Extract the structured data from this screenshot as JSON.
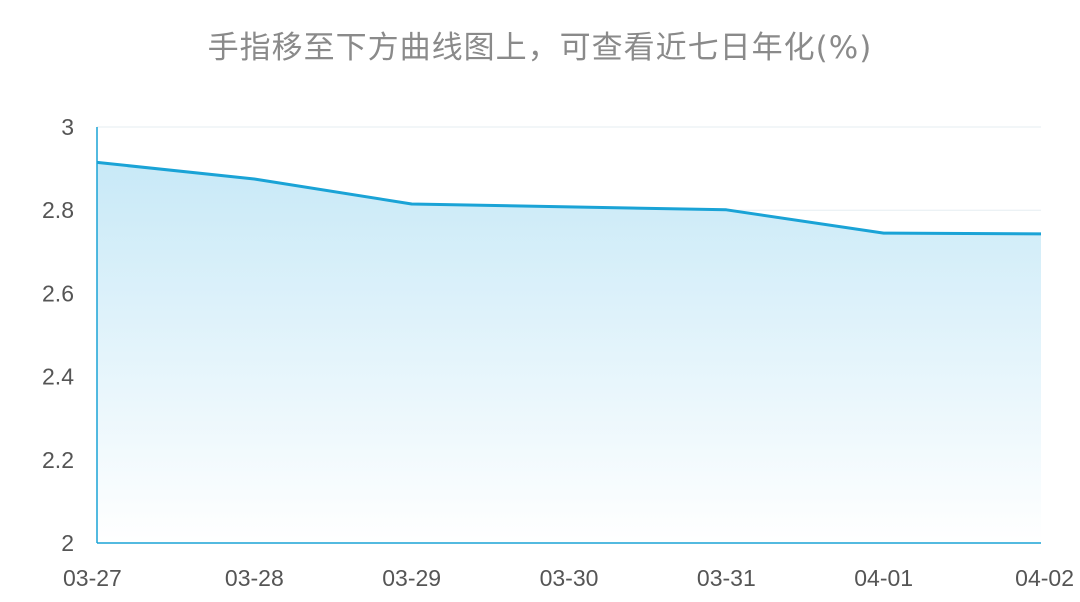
{
  "chart_data": {
    "type": "area",
    "title": "手指移至下方曲线图上，可查看近七日年化(%)",
    "categories": [
      "03-27",
      "03-28",
      "03-29",
      "03-30",
      "03-31",
      "04-01",
      "04-02"
    ],
    "series": [
      {
        "values": [
          2.915,
          2.875,
          2.815,
          2.808,
          2.801,
          2.745,
          2.743
        ]
      }
    ],
    "ylim": [
      2,
      3
    ],
    "yticks": [
      "3",
      "2.8",
      "2.6",
      "2.4",
      "2.2",
      "2"
    ],
    "grid": true,
    "colors": {
      "line": "#1aa3d6",
      "fill_top": "#c8e9f7",
      "fill_bottom": "#ffffff",
      "axis": "#1aa3d6",
      "grid": "#e6eef2"
    }
  }
}
